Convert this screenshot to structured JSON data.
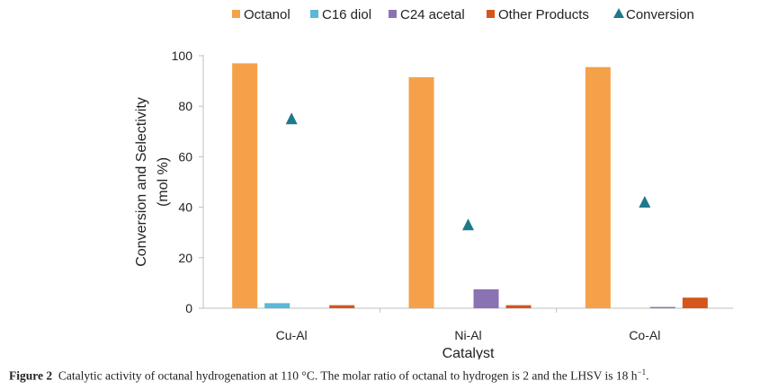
{
  "chart_data": {
    "type": "bar",
    "categories": [
      "Cu-Al",
      "Ni-Al",
      "Co-Al"
    ],
    "xlabel": "Catalyst",
    "ylabel_line1": "Conversion and Selectivity",
    "ylabel_line2": "(mol %)",
    "ylim": [
      0,
      100
    ],
    "yticks": [
      0,
      20,
      40,
      60,
      80,
      100
    ],
    "grid": false,
    "legend_position": "top",
    "series": [
      {
        "name": "Octanol",
        "kind": "bar",
        "color": "#f4a14a",
        "values": [
          97,
          91.5,
          95.5
        ]
      },
      {
        "name": "C16 diol",
        "kind": "bar",
        "color": "#5bb8d6",
        "values": [
          2,
          0,
          0
        ]
      },
      {
        "name": "C24 acetal",
        "kind": "bar",
        "color": "#8b72b3",
        "values": [
          0,
          7.5,
          0.5
        ]
      },
      {
        "name": "Other Products",
        "kind": "bar",
        "color": "#d4561c",
        "values": [
          1.2,
          1.2,
          4.2
        ]
      },
      {
        "name": "Conversion",
        "kind": "marker",
        "color": "#1e7a8a",
        "values": [
          75,
          33,
          42
        ]
      }
    ]
  },
  "caption": {
    "label": "Figure 2",
    "text": "Catalytic activity of octanal hydrogenation at 110 °C. The molar ratio of octanal to hydrogen is 2 and the LHSV is 18 h",
    "superscript": "−1",
    "end": "."
  }
}
